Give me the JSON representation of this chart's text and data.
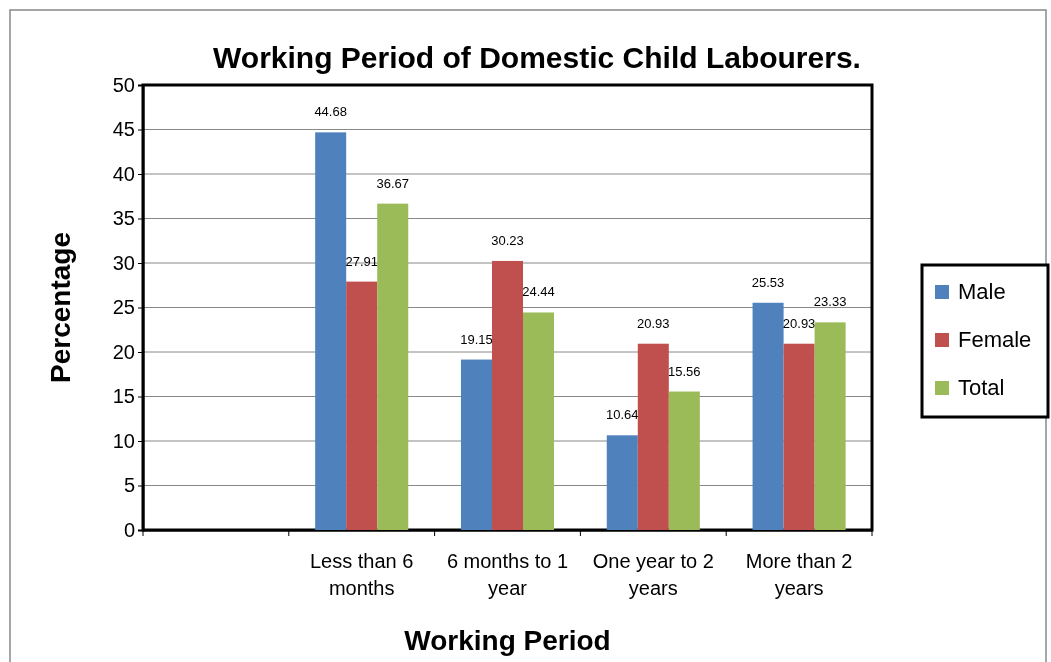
{
  "chart_data": {
    "type": "bar",
    "title": "Working Period of Domestic Child Labourers.",
    "xlabel": "Working Period",
    "ylabel": "Percentage",
    "categories": [
      null,
      "Less than 6 months",
      "6 months to 1 year",
      "One year to 2 years",
      "More than 2 years"
    ],
    "series": [
      {
        "name": "Male",
        "color": "#4f81bd",
        "values": [
          null,
          44.68,
          19.15,
          10.64,
          25.53
        ]
      },
      {
        "name": "Female",
        "color": "#c0504d",
        "values": [
          null,
          27.91,
          30.23,
          20.93,
          20.93
        ]
      },
      {
        "name": "Total",
        "color": "#9bbb59",
        "values": [
          null,
          36.67,
          24.44,
          15.56,
          23.33
        ]
      }
    ],
    "ylim": [
      0,
      50
    ],
    "yticks": [
      0,
      5,
      10,
      15,
      20,
      25,
      30,
      35,
      40,
      45,
      50
    ],
    "grid": "y",
    "legend": "right",
    "data_labels": true
  }
}
